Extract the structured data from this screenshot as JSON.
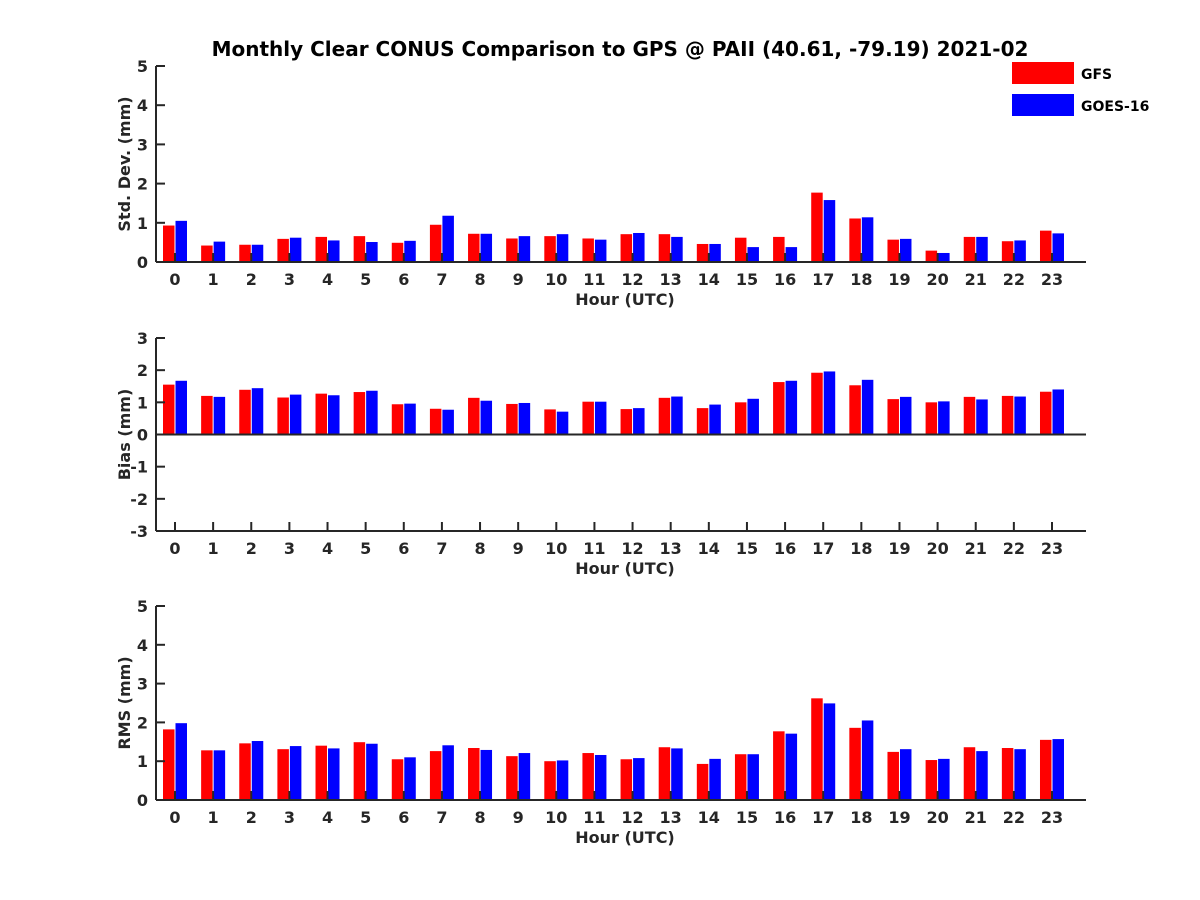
{
  "figure": {
    "title": "Monthly Clear CONUS Comparison to GPS @ PAII (40.61, -79.19) 2021-02"
  },
  "legend": {
    "placement": "top-right",
    "items": [
      {
        "name": "GFS",
        "color": "#ff0000"
      },
      {
        "name": "GOES-16",
        "color": "#0000ff"
      }
    ]
  },
  "chart_data": [
    {
      "type": "bar",
      "xlabel": "Hour (UTC)",
      "ylabel": "Std. Dev. (mm)",
      "ylim": [
        0,
        5
      ],
      "yticks": [
        0,
        1,
        2,
        3,
        4,
        5
      ],
      "categories": [
        "0",
        "1",
        "2",
        "3",
        "4",
        "5",
        "6",
        "7",
        "8",
        "9",
        "10",
        "11",
        "12",
        "13",
        "14",
        "15",
        "16",
        "17",
        "18",
        "19",
        "20",
        "21",
        "22",
        "23"
      ],
      "series": [
        {
          "name": "GFS",
          "color": "#ff0000",
          "values": [
            0.93,
            0.42,
            0.44,
            0.59,
            0.64,
            0.66,
            0.49,
            0.95,
            0.72,
            0.6,
            0.66,
            0.6,
            0.71,
            0.71,
            0.46,
            0.62,
            0.64,
            1.77,
            1.11,
            0.57,
            0.29,
            0.64,
            0.53,
            0.8
          ]
        },
        {
          "name": "GOES-16",
          "color": "#0000ff",
          "values": [
            1.05,
            0.52,
            0.44,
            0.62,
            0.55,
            0.51,
            0.54,
            1.18,
            0.72,
            0.66,
            0.71,
            0.57,
            0.74,
            0.64,
            0.46,
            0.38,
            0.38,
            1.58,
            1.14,
            0.59,
            0.23,
            0.64,
            0.55,
            0.73
          ]
        }
      ]
    },
    {
      "type": "bar",
      "xlabel": "Hour (UTC)",
      "ylabel": "Bias (mm)",
      "ylim": [
        -3,
        3
      ],
      "yticks": [
        -3,
        -2,
        -1,
        0,
        1,
        2,
        3
      ],
      "zero_line": true,
      "categories": [
        "0",
        "1",
        "2",
        "3",
        "4",
        "5",
        "6",
        "7",
        "8",
        "9",
        "10",
        "11",
        "12",
        "13",
        "14",
        "15",
        "16",
        "17",
        "18",
        "19",
        "20",
        "21",
        "22",
        "23"
      ],
      "series": [
        {
          "name": "GFS",
          "color": "#ff0000",
          "values": [
            1.55,
            1.2,
            1.39,
            1.15,
            1.27,
            1.32,
            0.94,
            0.8,
            1.14,
            0.95,
            0.78,
            1.02,
            0.79,
            1.14,
            0.82,
            1.0,
            1.63,
            1.92,
            1.53,
            1.1,
            1.0,
            1.17,
            1.2,
            1.33
          ]
        },
        {
          "name": "GOES-16",
          "color": "#0000ff",
          "values": [
            1.67,
            1.17,
            1.44,
            1.24,
            1.22,
            1.36,
            0.96,
            0.77,
            1.05,
            0.98,
            0.71,
            1.02,
            0.82,
            1.18,
            0.93,
            1.11,
            1.67,
            1.96,
            1.7,
            1.17,
            1.03,
            1.09,
            1.18,
            1.4
          ]
        }
      ]
    },
    {
      "type": "bar",
      "xlabel": "Hour (UTC)",
      "ylabel": "RMS (mm)",
      "ylim": [
        0,
        5
      ],
      "yticks": [
        0,
        1,
        2,
        3,
        4,
        5
      ],
      "categories": [
        "0",
        "1",
        "2",
        "3",
        "4",
        "5",
        "6",
        "7",
        "8",
        "9",
        "10",
        "11",
        "12",
        "13",
        "14",
        "15",
        "16",
        "17",
        "18",
        "19",
        "20",
        "21",
        "22",
        "23"
      ],
      "series": [
        {
          "name": "GFS",
          "color": "#ff0000",
          "values": [
            1.82,
            1.28,
            1.46,
            1.31,
            1.4,
            1.49,
            1.05,
            1.26,
            1.34,
            1.13,
            1.0,
            1.21,
            1.05,
            1.36,
            0.93,
            1.18,
            1.77,
            2.62,
            1.86,
            1.24,
            1.03,
            1.36,
            1.34,
            1.55
          ]
        },
        {
          "name": "GOES-16",
          "color": "#0000ff",
          "values": [
            1.98,
            1.28,
            1.52,
            1.39,
            1.33,
            1.45,
            1.1,
            1.41,
            1.29,
            1.21,
            1.02,
            1.16,
            1.08,
            1.33,
            1.06,
            1.18,
            1.71,
            2.49,
            2.05,
            1.31,
            1.06,
            1.26,
            1.31,
            1.57
          ]
        }
      ]
    }
  ]
}
